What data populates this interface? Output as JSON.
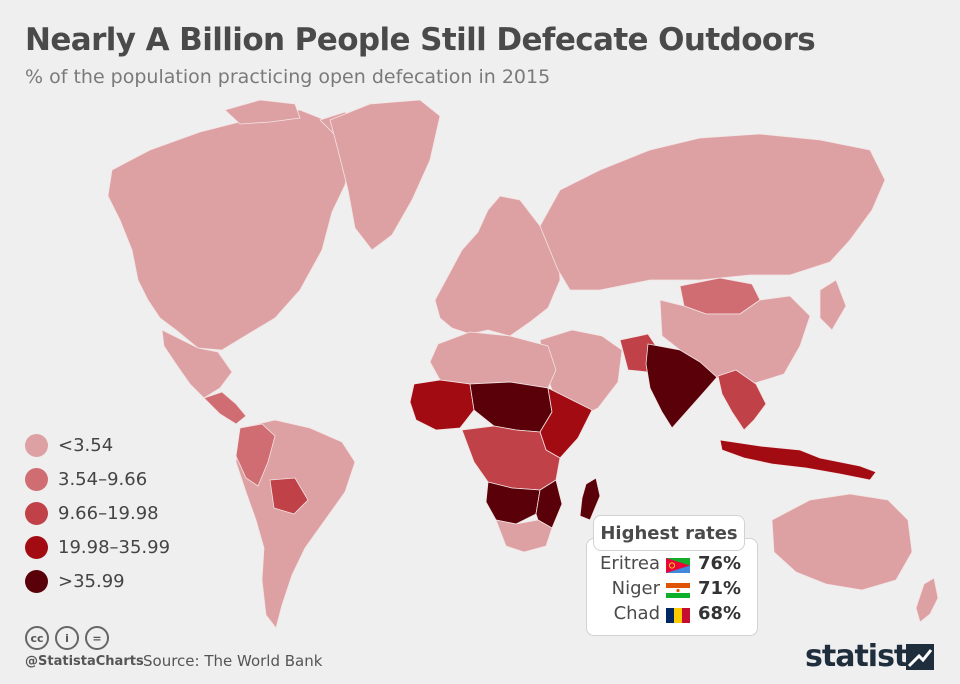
{
  "header": {
    "title": "Nearly A Billion People Still Defecate Outdoors",
    "subtitle": "% of the population practicing open defecation in 2015"
  },
  "colors": {
    "background": "#efefef",
    "ocean": "#efefef",
    "border": "#f3e4e4",
    "bins": [
      "#dda0a3",
      "#d06d73",
      "#c04248",
      "#a30b12",
      "#5a0008"
    ]
  },
  "legend": {
    "items": [
      {
        "label": "<3.54"
      },
      {
        "label": "3.54–9.66"
      },
      {
        "label": "9.66–19.98"
      },
      {
        "label": "19.98–35.99"
      },
      {
        "label": ">35.99"
      }
    ]
  },
  "highest_rates": {
    "title": "Highest rates",
    "rows": [
      {
        "country": "Eritrea",
        "value": "76%",
        "flag": "eritrea-flag-icon"
      },
      {
        "country": "Niger",
        "value": "71%",
        "flag": "niger-flag-icon"
      },
      {
        "country": "Chad",
        "value": "68%",
        "flag": "chad-flag-icon"
      }
    ]
  },
  "map": {
    "regions": [
      {
        "name": "north-america",
        "bin": 0
      },
      {
        "name": "greenland",
        "bin": 0
      },
      {
        "name": "mexico",
        "bin": 0
      },
      {
        "name": "central-america",
        "bin": 1
      },
      {
        "name": "south-america",
        "bin": 0
      },
      {
        "name": "colombia-peru",
        "bin": 1
      },
      {
        "name": "bolivia",
        "bin": 2
      },
      {
        "name": "europe",
        "bin": 0
      },
      {
        "name": "russia",
        "bin": 0
      },
      {
        "name": "middle-east",
        "bin": 0
      },
      {
        "name": "north-africa",
        "bin": 0
      },
      {
        "name": "west-africa",
        "bin": 3
      },
      {
        "name": "sahel",
        "bin": 4
      },
      {
        "name": "horn-of-africa",
        "bin": 3
      },
      {
        "name": "central-africa",
        "bin": 2
      },
      {
        "name": "southern-africa",
        "bin": 0
      },
      {
        "name": "angola-zambia",
        "bin": 4
      },
      {
        "name": "mozambique",
        "bin": 4
      },
      {
        "name": "madagascar",
        "bin": 4
      },
      {
        "name": "india",
        "bin": 4
      },
      {
        "name": "pakistan",
        "bin": 2
      },
      {
        "name": "mongolia",
        "bin": 1
      },
      {
        "name": "china",
        "bin": 0
      },
      {
        "name": "southeast-asia",
        "bin": 2
      },
      {
        "name": "indonesia",
        "bin": 3
      },
      {
        "name": "australia",
        "bin": 0
      },
      {
        "name": "new-zealand",
        "bin": 0
      }
    ]
  },
  "footer": {
    "license_icons": [
      "cc-icon",
      "attribution-icon",
      "no-derivatives-icon"
    ],
    "license_labels": [
      "cc",
      "i",
      "="
    ],
    "handle": "@StatistaCharts",
    "source": "Source: The World Bank",
    "brand": "statista"
  }
}
